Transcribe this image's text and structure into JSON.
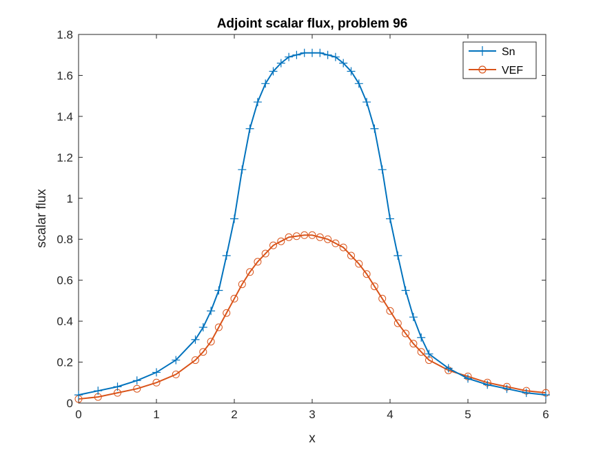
{
  "chart_data": {
    "type": "line",
    "title": "Adjoint scalar flux, problem 96",
    "xlabel": "x",
    "ylabel": "scalar flux",
    "xlim": [
      0,
      6
    ],
    "ylim": [
      0,
      1.8
    ],
    "xticks": [
      0,
      1,
      2,
      3,
      4,
      5,
      6
    ],
    "xtick_labels": [
      "0",
      "1",
      "2",
      "3",
      "4",
      "5",
      "6"
    ],
    "yticks": [
      0,
      0.2,
      0.4,
      0.6,
      0.8,
      1,
      1.2,
      1.4,
      1.6,
      1.8
    ],
    "ytick_labels": [
      "0",
      "0.2",
      "0.4",
      "0.6",
      "0.8",
      "1",
      "1.2",
      "1.4",
      "1.6",
      "1.8"
    ],
    "grid": false,
    "legend_position": "top-right",
    "x": [
      0,
      0.25,
      0.5,
      0.75,
      1.0,
      1.25,
      1.5,
      1.6,
      1.7,
      1.8,
      1.9,
      2.0,
      2.1,
      2.2,
      2.3,
      2.4,
      2.5,
      2.6,
      2.7,
      2.8,
      2.9,
      3.0,
      3.1,
      3.2,
      3.3,
      3.4,
      3.5,
      3.6,
      3.7,
      3.8,
      3.9,
      4.0,
      4.1,
      4.2,
      4.3,
      4.4,
      4.5,
      4.75,
      5.0,
      5.25,
      5.5,
      5.75,
      6.0
    ],
    "series": [
      {
        "name": "Sn",
        "color": "#0072BD",
        "marker": "plus",
        "values": [
          0.04,
          0.06,
          0.08,
          0.11,
          0.15,
          0.21,
          0.31,
          0.37,
          0.45,
          0.55,
          0.72,
          0.9,
          1.14,
          1.34,
          1.47,
          1.56,
          1.62,
          1.66,
          1.69,
          1.7,
          1.71,
          1.71,
          1.71,
          1.7,
          1.69,
          1.66,
          1.62,
          1.56,
          1.47,
          1.34,
          1.14,
          0.9,
          0.72,
          0.55,
          0.42,
          0.32,
          0.24,
          0.17,
          0.12,
          0.09,
          0.07,
          0.05,
          0.04
        ]
      },
      {
        "name": "VEF",
        "color": "#D95319",
        "marker": "circle",
        "values": [
          0.02,
          0.03,
          0.05,
          0.07,
          0.1,
          0.14,
          0.21,
          0.25,
          0.3,
          0.37,
          0.44,
          0.51,
          0.58,
          0.64,
          0.69,
          0.73,
          0.77,
          0.79,
          0.81,
          0.815,
          0.82,
          0.82,
          0.81,
          0.8,
          0.78,
          0.76,
          0.72,
          0.68,
          0.63,
          0.57,
          0.51,
          0.45,
          0.39,
          0.34,
          0.29,
          0.25,
          0.21,
          0.16,
          0.13,
          0.1,
          0.08,
          0.06,
          0.05
        ]
      }
    ]
  }
}
